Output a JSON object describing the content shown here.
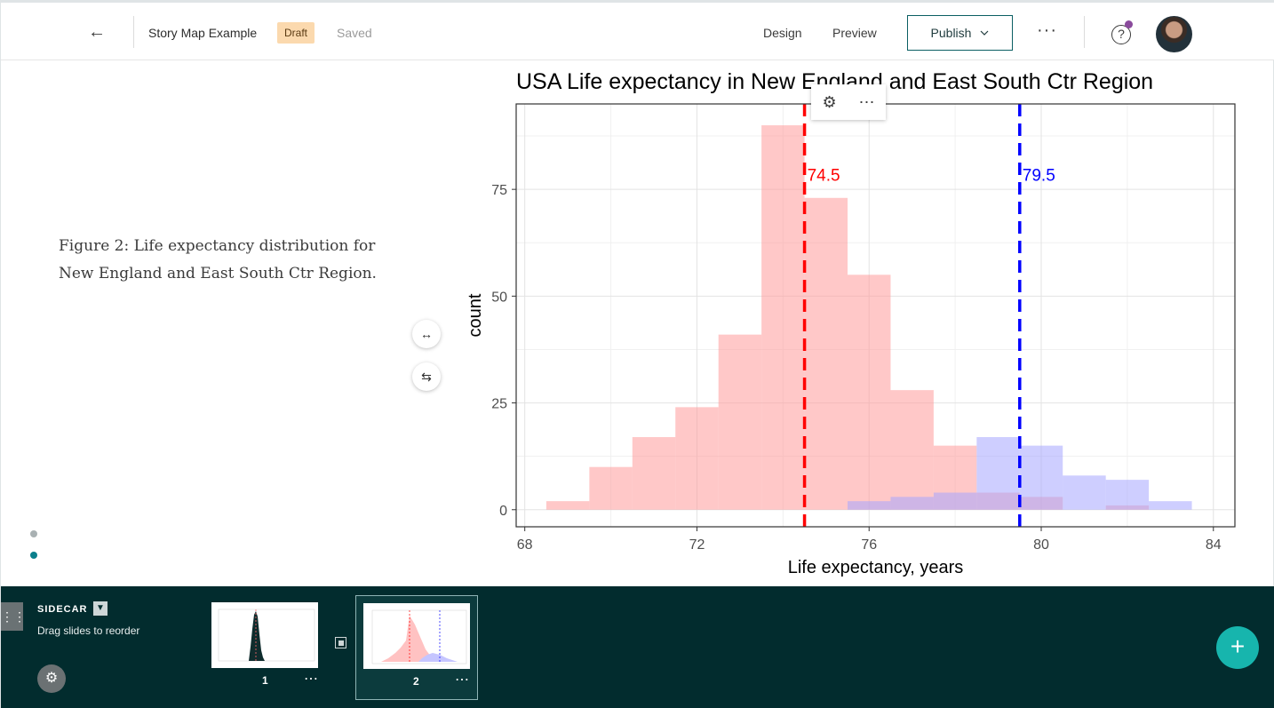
{
  "header": {
    "back_icon": "arrow-left-icon",
    "story_title": "Story Map Example",
    "status_badge": "Draft",
    "save_state": "Saved",
    "design_label": "Design",
    "preview_label": "Preview",
    "publish_label": "Publish",
    "more_label": "···",
    "help_label": "?"
  },
  "content": {
    "caption": "Figure 2: Life expectancy distribution for New England and East South Ctr Region."
  },
  "chart_data": {
    "type": "bar",
    "title": "USA Life expectancy in New England and East South Ctr Region",
    "xlabel": "Life expectancy, years",
    "ylabel": "count",
    "xlim": [
      67.8,
      84.5
    ],
    "ylim": [
      -4,
      95
    ],
    "xticks": [
      68,
      72,
      76,
      80,
      84
    ],
    "yticks": [
      0,
      25,
      50,
      75
    ],
    "grid": true,
    "bin_width": 1,
    "series": [
      {
        "color": "#ff9b9b",
        "bins": [
          [
            69,
            2
          ],
          [
            70,
            10
          ],
          [
            71,
            17
          ],
          [
            72,
            24
          ],
          [
            73,
            41
          ],
          [
            74,
            90
          ],
          [
            75,
            73
          ],
          [
            76,
            55
          ],
          [
            77,
            28
          ],
          [
            78,
            15
          ],
          [
            79,
            4
          ],
          [
            80,
            3
          ],
          [
            81,
            0
          ],
          [
            82,
            1
          ]
        ]
      },
      {
        "color": "#a6a6ff",
        "bins": [
          [
            76,
            2
          ],
          [
            77,
            3
          ],
          [
            78,
            4
          ],
          [
            79,
            17
          ],
          [
            80,
            15
          ],
          [
            81,
            8
          ],
          [
            82,
            7
          ],
          [
            83,
            2
          ]
        ]
      }
    ],
    "vlines": [
      {
        "x": 74.5,
        "label": "74.5",
        "color": "#ff0000"
      },
      {
        "x": 79.5,
        "label": "79.5",
        "color": "#0000ff"
      }
    ],
    "vline_label_y": 77
  },
  "bottom_bar": {
    "mode_label": "SIDECAR",
    "hint": "Drag slides to reorder",
    "slides": [
      {
        "number": "1"
      },
      {
        "number": "2"
      }
    ],
    "add_label": "+"
  },
  "colors": {
    "accent": "#0b5f63",
    "bottom_bg": "#022c2e",
    "fab": "#17b5ad",
    "dot_active": "#0a7f8c",
    "dot_inactive": "#a9b1b3"
  }
}
